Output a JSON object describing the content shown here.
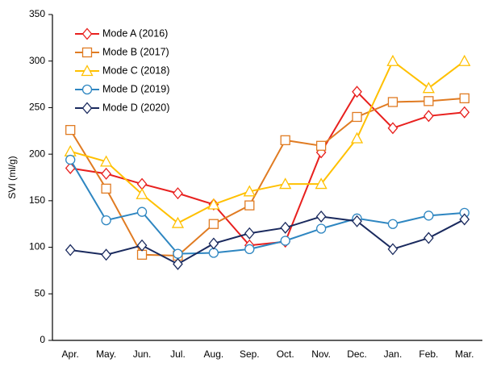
{
  "chart_data": {
    "type": "line",
    "y_label": "SVI (ml/g)",
    "categories": [
      "Apr.",
      "May.",
      "Jun.",
      "Jul.",
      "Aug.",
      "Sep.",
      "Oct.",
      "Nov.",
      "Dec.",
      "Jan.",
      "Feb.",
      "Mar."
    ],
    "series": [
      {
        "name": "Mode A (2016)",
        "color": "#e8201e",
        "marker": "diamond",
        "values": [
          185,
          179,
          168,
          158,
          146,
          102,
          106,
          202,
          267,
          228,
          241,
          245
        ]
      },
      {
        "name": "Mode B (2017)",
        "color": "#e07b22",
        "marker": "square",
        "values": [
          226,
          163,
          92,
          91,
          125,
          145,
          215,
          209,
          240,
          256,
          257,
          260
        ]
      },
      {
        "name": "Mode C (2018)",
        "color": "#ffc000",
        "marker": "triangle",
        "values": [
          203,
          192,
          157,
          126,
          146,
          160,
          168,
          168,
          217,
          300,
          271,
          300
        ]
      },
      {
        "name": "Mode D (2019)",
        "color": "#2e86c1",
        "marker": "circle",
        "values": [
          194,
          129,
          138,
          93,
          94,
          98,
          107,
          120,
          131,
          125,
          134,
          137
        ]
      },
      {
        "name": "Mode D (2020)",
        "color": "#1a2a5e",
        "marker": "diamond",
        "values": [
          97,
          92,
          102,
          82,
          104,
          115,
          121,
          133,
          128,
          98,
          110,
          130
        ]
      }
    ],
    "ylim": [
      0,
      350
    ],
    "yticks": [
      0,
      50,
      100,
      150,
      200,
      250,
      300,
      350
    ],
    "legend": "upper-left"
  }
}
